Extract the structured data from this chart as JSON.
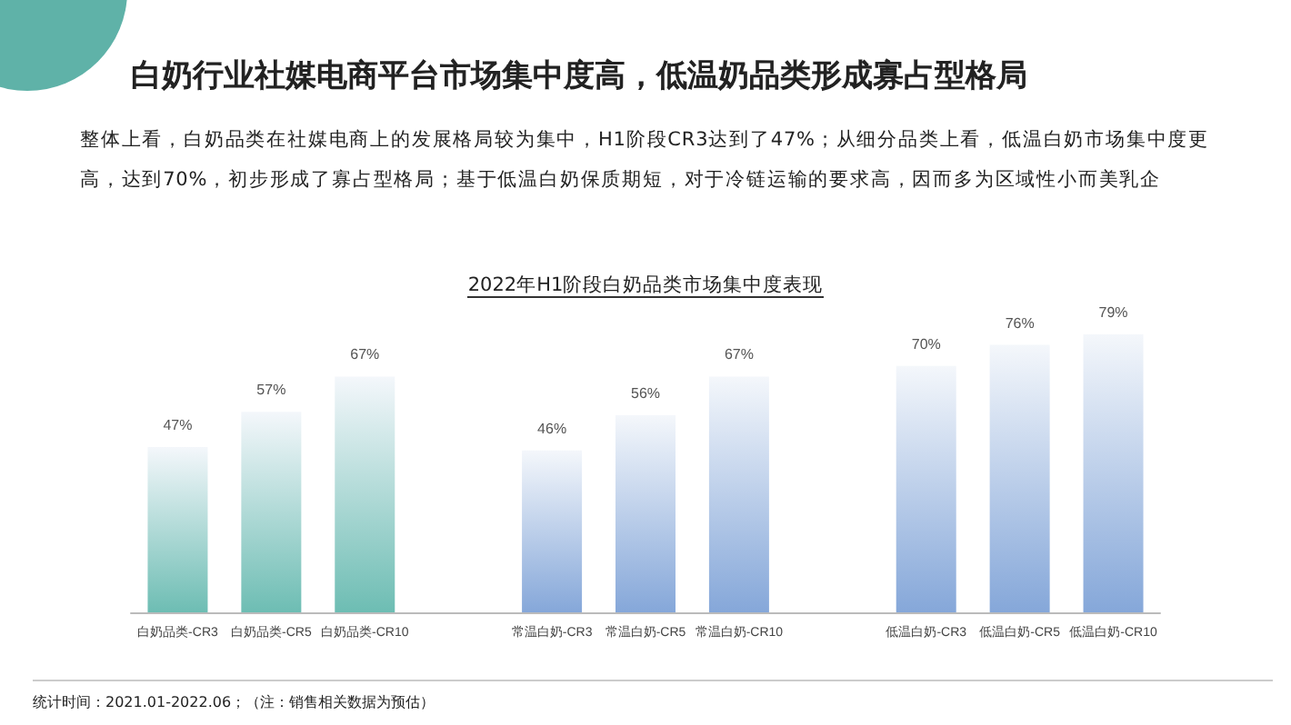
{
  "chart_data": {
    "type": "bar",
    "title": "白奶行业社媒电商平台市场集中度高，低温奶品类形成寡占型格局",
    "subtitle": "整体上看，白奶品类在社媒电商上的发展格局较为集中，H1阶段CR3达到了47%；从细分品类上看，低温白奶市场集中度更高，达到70%，初步形成了寡占型格局；基于低温白奶保质期短，对于冷链运输的要求高，因而多为区域性小而美乳企",
    "annotations": [
      "2022年H1阶段白奶品类市场集中度表现",
      "统计时间：2021.01-2022.06；（注：销售相关数据为预估）"
    ],
    "categories": [
      "白奶品类-CR3",
      "白奶品类-CR5",
      "白奶品类-CR10",
      null,
      "常温白奶-CR3",
      "常温白奶-CR5",
      "常温白奶-CR10",
      null,
      "低温白奶-CR3",
      "低温白奶-CR5",
      "低温白奶-CR10"
    ],
    "values": [
      47,
      57,
      67,
      null,
      46,
      56,
      67,
      null,
      70,
      76,
      79
    ],
    "value_labels": [
      "47%",
      "57%",
      "67%",
      null,
      "46%",
      "56%",
      "67%",
      null,
      "70%",
      "76%",
      "79%"
    ],
    "colors": [
      "#6dbdb3",
      "#6dbdb3",
      "#6dbdb3",
      null,
      "#85a7d9",
      "#85a7d9",
      "#85a7d9",
      null,
      "#85a7d9",
      "#85a7d9",
      "#85a7d9"
    ],
    "grid": false
  }
}
